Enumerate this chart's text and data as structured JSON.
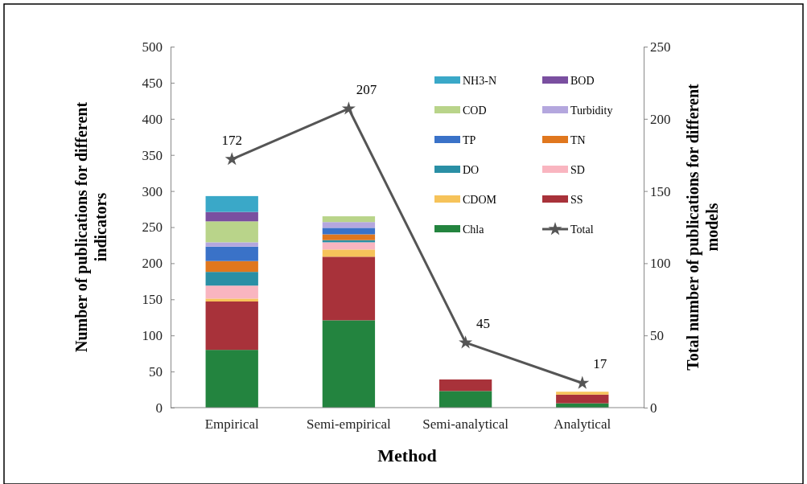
{
  "chart_data": {
    "type": "bar",
    "stacked": true,
    "xlabel": "Method",
    "ylabel": "Number of publications for different indicators",
    "y2label": "Total number of publications for different models",
    "categories": [
      "Empirical",
      "Semi-empirical",
      "Semi-analytical",
      "Analytical"
    ],
    "series": [
      {
        "name": "Chla",
        "color": "#23843f",
        "values": [
          80,
          121,
          23,
          6
        ]
      },
      {
        "name": "SS",
        "color": "#a8323a",
        "values": [
          67,
          88,
          16,
          12
        ]
      },
      {
        "name": "CDOM",
        "color": "#f6c35a",
        "values": [
          4,
          10,
          0,
          4
        ]
      },
      {
        "name": "SD",
        "color": "#f9b5c0",
        "values": [
          18,
          10,
          0,
          0
        ]
      },
      {
        "name": "DO",
        "color": "#2a8fa5",
        "values": [
          19,
          3,
          0,
          0
        ]
      },
      {
        "name": "TN",
        "color": "#e0771e",
        "values": [
          15,
          8,
          0,
          0
        ]
      },
      {
        "name": "TP",
        "color": "#3a72c8",
        "values": [
          20,
          9,
          0,
          0
        ]
      },
      {
        "name": "Turbidity",
        "color": "#b4a7de",
        "values": [
          6,
          8,
          0,
          0
        ]
      },
      {
        "name": "COD",
        "color": "#b9d48a",
        "values": [
          29,
          8,
          0,
          0
        ]
      },
      {
        "name": "BOD",
        "color": "#7a4fa0",
        "values": [
          13,
          0,
          0,
          0
        ]
      },
      {
        "name": "NH3-N",
        "color": "#3aa8c8",
        "values": [
          22,
          0,
          0,
          0
        ]
      },
      {
        "name": "Total",
        "type": "line",
        "axis": "y2",
        "color": "#555555",
        "marker": "star",
        "values": [
          172,
          207,
          45,
          17
        ],
        "value_labels": [
          "172",
          "207",
          "45",
          "17"
        ]
      }
    ],
    "ylim": [
      0,
      500
    ],
    "yticks": [
      0,
      50,
      100,
      150,
      200,
      250,
      300,
      350,
      400,
      450,
      500
    ],
    "y2lim": [
      0,
      250
    ],
    "y2ticks": [
      0,
      50,
      100,
      150,
      200,
      250
    ],
    "legend": "top right"
  }
}
